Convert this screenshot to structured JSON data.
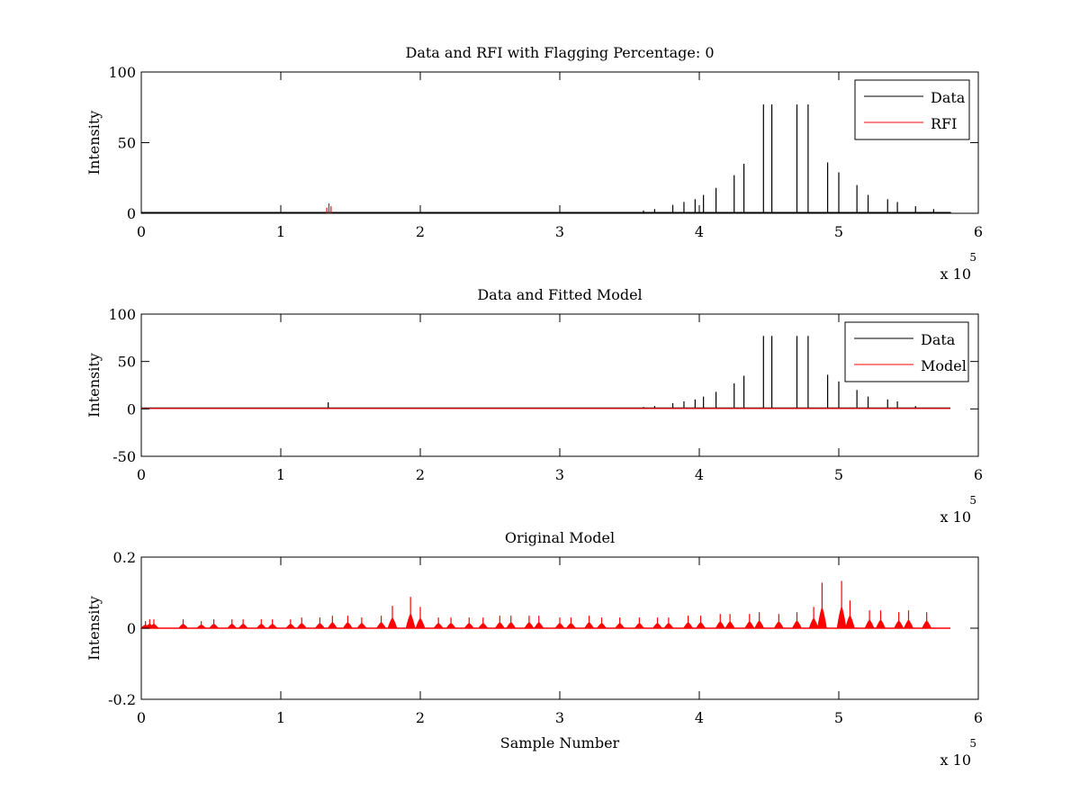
{
  "chart_data": [
    {
      "type": "line",
      "title": "Data and RFI with Flagging Percentage: 0",
      "xlabel": "",
      "ylabel": "Intensity",
      "xlim": [
        0,
        600000
      ],
      "ylim": [
        0,
        100
      ],
      "x_ticks": [
        0,
        1,
        2,
        3,
        4,
        5,
        6
      ],
      "y_ticks": [
        0,
        50,
        100
      ],
      "x_exponent_base": "x 10",
      "x_exponent_power": "5",
      "legend": {
        "placement": "top-right",
        "entries": [
          "Data",
          "RFI"
        ]
      },
      "series": [
        {
          "name": "Data",
          "color": "#000000",
          "style": "spikes",
          "x": [
            22000,
            100000,
            135000,
            205000,
            230000,
            255000,
            280000,
            305000,
            330000,
            358000,
            380000,
            405000,
            430000,
            360000,
            368000,
            381000,
            389000,
            397000,
            403000,
            412000,
            425000,
            432000,
            446000,
            452000,
            470000,
            478000,
            492000,
            500000,
            513000,
            521000,
            535000,
            542000,
            555000,
            568000,
            580000
          ],
          "y": [
            0.5,
            0.5,
            0.5,
            1,
            0.5,
            0.5,
            0.5,
            1,
            0.5,
            0.5,
            0.5,
            0.5,
            1,
            2,
            3,
            6,
            8,
            10,
            13,
            18,
            27,
            35,
            77,
            77,
            77,
            77,
            36,
            29,
            20,
            13,
            10,
            8,
            5,
            3,
            1
          ]
        },
        {
          "name": "RFI",
          "color": "#ff0000",
          "style": "spikes",
          "x": [
            133000,
            134500,
            136000
          ],
          "y": [
            4,
            7,
            5
          ]
        }
      ]
    },
    {
      "type": "line",
      "title": "Data and Fitted Model",
      "xlabel": "",
      "ylabel": "Intensity",
      "xlim": [
        0,
        600000
      ],
      "ylim": [
        -50,
        100
      ],
      "x_ticks": [
        0,
        1,
        2,
        3,
        4,
        5,
        6
      ],
      "y_ticks": [
        -50,
        0,
        50,
        100
      ],
      "x_exponent_base": "x 10",
      "x_exponent_power": "5",
      "legend": {
        "placement": "top-right",
        "entries": [
          "Data",
          "Model"
        ]
      },
      "series": [
        {
          "name": "Data",
          "color": "#000000",
          "style": "spikes",
          "x": [
            134000,
            360000,
            368000,
            381000,
            389000,
            397000,
            403000,
            412000,
            425000,
            432000,
            446000,
            452000,
            470000,
            478000,
            492000,
            500000,
            513000,
            521000,
            535000,
            542000,
            555000,
            568000
          ],
          "y": [
            7,
            2,
            3,
            6,
            8,
            10,
            13,
            18,
            27,
            35,
            77,
            77,
            77,
            77,
            36,
            29,
            20,
            13,
            10,
            8,
            3,
            1
          ]
        },
        {
          "name": "Model",
          "color": "#ff0000",
          "style": "flat",
          "x": [
            0,
            580000
          ],
          "y": [
            0.5,
            0.5
          ]
        }
      ]
    },
    {
      "type": "line",
      "title": "Original Model",
      "xlabel": "Sample Number",
      "ylabel": "Intensity",
      "xlim": [
        0,
        600000
      ],
      "ylim": [
        -0.2,
        0.2
      ],
      "x_ticks": [
        0,
        1,
        2,
        3,
        4,
        5,
        6
      ],
      "y_ticks": [
        -0.2,
        0,
        0.2
      ],
      "x_exponent_base": "x 10",
      "x_exponent_power": "5",
      "series": [
        {
          "color": "#ff0000",
          "style": "peaks",
          "x": [
            3000,
            6000,
            9000,
            30000,
            43000,
            52000,
            65000,
            73000,
            86000,
            94000,
            107000,
            115000,
            128000,
            137000,
            148000,
            158000,
            172000,
            180000,
            193000,
            200000,
            213000,
            222000,
            235000,
            245000,
            257000,
            265000,
            278000,
            285000,
            300000,
            308000,
            321000,
            330000,
            343000,
            357000,
            370000,
            378000,
            392000,
            401000,
            415000,
            422000,
            436000,
            443000,
            457000,
            470000,
            482000,
            488000,
            502000,
            508000,
            522000,
            530000,
            543000,
            550000,
            563000
          ],
          "y": [
            0.02,
            0.025,
            0.025,
            0.025,
            0.02,
            0.025,
            0.025,
            0.025,
            0.025,
            0.025,
            0.025,
            0.03,
            0.03,
            0.035,
            0.035,
            0.03,
            0.035,
            0.063,
            0.088,
            0.06,
            0.03,
            0.03,
            0.03,
            0.03,
            0.035,
            0.035,
            0.035,
            0.035,
            0.03,
            0.03,
            0.035,
            0.03,
            0.03,
            0.03,
            0.03,
            0.03,
            0.035,
            0.035,
            0.04,
            0.04,
            0.04,
            0.045,
            0.04,
            0.045,
            0.06,
            0.128,
            0.133,
            0.078,
            0.05,
            0.05,
            0.045,
            0.05,
            0.045
          ]
        }
      ]
    }
  ]
}
